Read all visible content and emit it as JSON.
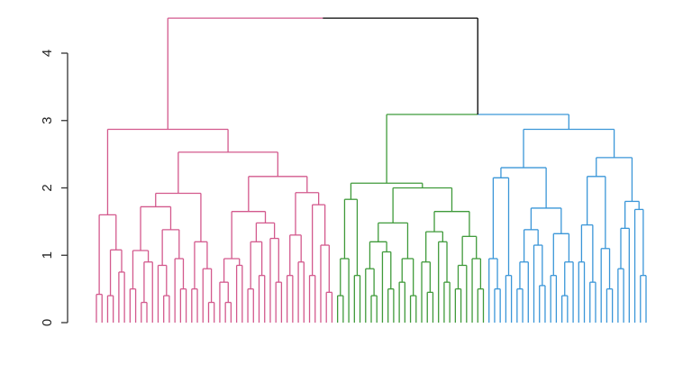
{
  "chart_data": {
    "type": "dendrogram",
    "ylim": [
      0,
      4
    ],
    "yticks": [
      0,
      1,
      2,
      3,
      4
    ],
    "link_color": "#000000",
    "tree": [
      4.52,
      {
        "color": "#d3598d",
        "tree": [
          2.87,
          [
            1.6,
            [
              0.42,
              0,
              0
            ],
            [
              1.08,
              [
                0.4,
                0,
                0
              ],
              [
                0.75,
                0,
                0
              ]
            ]
          ],
          [
            2.53,
            [
              1.92,
              [
                1.72,
                [
                  1.07,
                  [
                    0.5,
                    0,
                    0
                  ],
                  [
                    0.9,
                    [
                      0.3,
                      0,
                      0
                    ],
                    0
                  ]
                ],
                [
                  1.38,
                  [
                    0.85,
                    0,
                    [
                      0.4,
                      0,
                      0
                    ]
                  ],
                  [
                    0.95,
                    0,
                    [
                      0.5,
                      0,
                      0
                    ]
                  ]
                ]
              ],
              [
                1.2,
                [
                  0.5,
                  0,
                  0
                ],
                [
                  0.8,
                  0,
                  [
                    0.3,
                    0,
                    0
                  ]
                ]
              ]
            ],
            [
              2.17,
              [
                1.65,
                [
                  0.95,
                  [
                    0.6,
                    0,
                    [
                      0.3,
                      0,
                      0
                    ]
                  ],
                  [
                    0.85,
                    0,
                    0
                  ]
                ],
                [
                  1.48,
                  [
                    1.2,
                    [
                      0.5,
                      0,
                      0
                    ],
                    [
                      0.7,
                      0,
                      0
                    ]
                  ],
                  [
                    1.25,
                    0,
                    [
                      0.6,
                      0,
                      0
                    ]
                  ]
                ]
              ],
              [
                1.93,
                [
                  1.3,
                  [
                    0.7,
                    0,
                    0
                  ],
                  [
                    0.9,
                    0,
                    0
                  ]
                ],
                [
                  1.75,
                  [
                    0.7,
                    0,
                    0
                  ],
                  [
                    1.15,
                    0,
                    [
                      0.45,
                      0,
                      0
                    ]
                  ]
                ]
              ]
            ]
          ]
        ]
      },
      [
        3.09,
        {
          "color": "#3f9a3a",
          "tree": [
            2.07,
            [
              1.83,
              [
                0.95,
                [
                  0.4,
                  0,
                  0
                ],
                0
              ],
              [
                0.7,
                0,
                0
              ]
            ],
            [
              2.0,
              [
                1.48,
                [
                  1.2,
                  [
                    0.8,
                    0,
                    [
                      0.4,
                      0,
                      0
                    ]
                  ],
                  [
                    1.05,
                    0,
                    [
                      0.5,
                      0,
                      0
                    ]
                  ]
                ],
                [
                  0.95,
                  [
                    0.6,
                    0,
                    0
                  ],
                  [
                    0.4,
                    0,
                    0
                  ]
                ]
              ],
              [
                1.65,
                [
                  1.35,
                  [
                    0.9,
                    0,
                    [
                      0.45,
                      0,
                      0
                    ]
                  ],
                  [
                    1.2,
                    0,
                    [
                      0.6,
                      0,
                      0
                    ]
                  ]
                ],
                [
                  1.28,
                  [
                    0.85,
                    [
                      0.5,
                      0,
                      0
                    ],
                    0
                  ],
                  [
                    0.95,
                    0,
                    [
                      0.5,
                      0,
                      0
                    ]
                  ]
                ]
              ]
            ]
          ]
        },
        {
          "color": "#3a96d8",
          "tree": [
            2.87,
            [
              2.3,
              [
                2.15,
                [
                  0.95,
                  0,
                  [
                    0.5,
                    0,
                    0
                  ]
                ],
                [
                  0.7,
                  0,
                  0
                ]
              ],
              [
                1.7,
                [
                  1.38,
                  [
                    0.9,
                    [
                      0.5,
                      0,
                      0
                    ],
                    0
                  ],
                  [
                    1.15,
                    0,
                    [
                      0.55,
                      0,
                      0
                    ]
                  ]
                ],
                [
                  1.32,
                  [
                    0.7,
                    0,
                    0
                  ],
                  [
                    0.9,
                    [
                      0.4,
                      0,
                      0
                    ],
                    0
                  ]
                ]
              ]
            ],
            [
              2.45,
              [
                2.17,
                [
                  1.45,
                  [
                    0.9,
                    0,
                    0
                  ],
                  [
                    0.6,
                    0,
                    0
                  ]
                ],
                [
                  1.1,
                  0,
                  [
                    0.5,
                    0,
                    0
                  ]
                ]
              ],
              [
                1.8,
                [
                  1.4,
                  [
                    0.8,
                    0,
                    0
                  ],
                  0
                ],
                [
                  1.68,
                  0,
                  [
                    0.7,
                    0,
                    0
                  ]
                ]
              ]
            ]
          ]
        }
      ]
    ]
  }
}
